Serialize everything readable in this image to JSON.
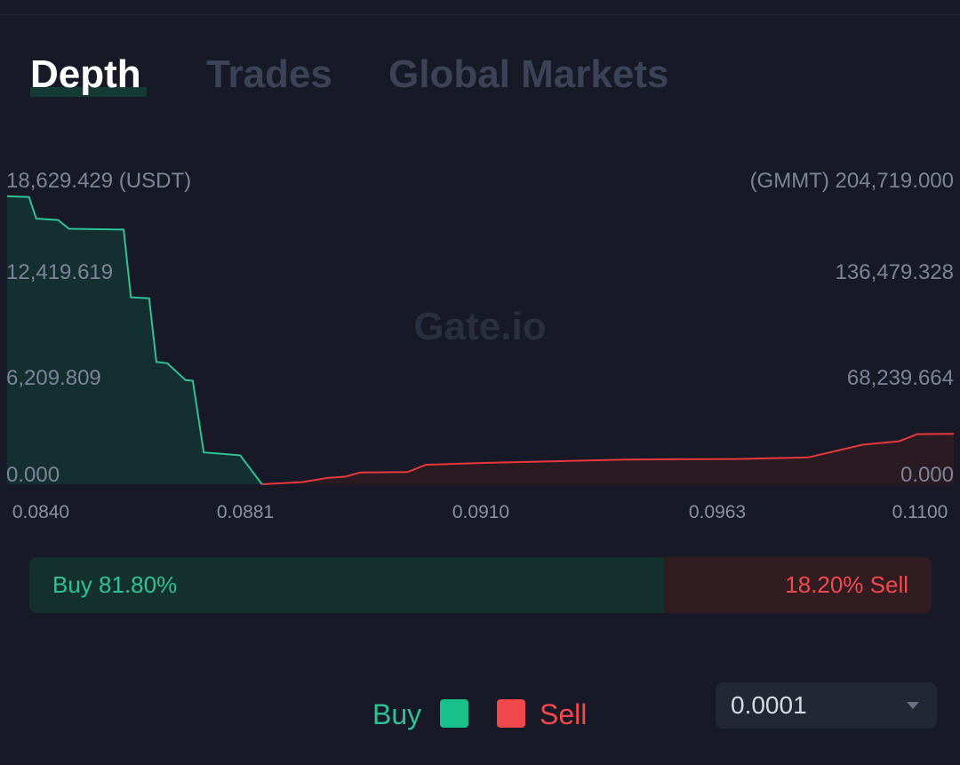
{
  "tabs": [
    {
      "label": "Depth",
      "active": true
    },
    {
      "label": "Trades",
      "active": false
    },
    {
      "label": "Global Markets",
      "active": false
    }
  ],
  "watermark": "Gate.io",
  "colors": {
    "buy": "#2ec294",
    "sell": "#f2494c",
    "background": "#171a26"
  },
  "chart_data": {
    "type": "area",
    "title": "",
    "left_axis": {
      "unit_label": "(USDT)",
      "ticks": [
        "18,629.429",
        "12,419.619",
        "6,209.809",
        "0.000"
      ],
      "range": [
        0,
        18629.429
      ]
    },
    "right_axis": {
      "unit_label": "(GMMT)",
      "ticks": [
        "204,719.000",
        "136,479.328",
        "68,239.664",
        "0.000"
      ],
      "range": [
        0,
        204719.0
      ]
    },
    "x_ticks": [
      "0.0840",
      "0.0881",
      "0.0910",
      "0.0963",
      "0.1100"
    ],
    "series": [
      {
        "name": "Buy",
        "axis": "left",
        "points": [
          [
            0.084,
            18580
          ],
          [
            0.0846,
            18530
          ],
          [
            0.0848,
            17140
          ],
          [
            0.0854,
            17050
          ],
          [
            0.0857,
            16480
          ],
          [
            0.0872,
            16430
          ],
          [
            0.0874,
            12060
          ],
          [
            0.0879,
            12000
          ],
          [
            0.0881,
            7890
          ],
          [
            0.0884,
            7810
          ],
          [
            0.0889,
            6720
          ],
          [
            0.0891,
            6680
          ],
          [
            0.0894,
            2050
          ],
          [
            0.0897,
            2000
          ],
          [
            0.0904,
            1870
          ],
          [
            0.091,
            0
          ]
        ]
      },
      {
        "name": "Sell",
        "axis": "right",
        "points": [
          [
            0.091,
            0
          ],
          [
            0.0921,
            1500
          ],
          [
            0.0928,
            4500
          ],
          [
            0.0933,
            5400
          ],
          [
            0.0937,
            8300
          ],
          [
            0.095,
            8600
          ],
          [
            0.0955,
            13800
          ],
          [
            0.0972,
            15200
          ],
          [
            0.101,
            17500
          ],
          [
            0.104,
            17900
          ],
          [
            0.106,
            19000
          ],
          [
            0.1075,
            28000
          ],
          [
            0.1085,
            30500
          ],
          [
            0.109,
            35500
          ],
          [
            0.11,
            35800
          ]
        ]
      }
    ]
  },
  "depth_ratio": {
    "buy_percent": 81.8,
    "sell_percent": 18.2,
    "buy_label": "Buy 81.80%",
    "sell_label": "18.20% Sell"
  },
  "legend": {
    "buy_label": "Buy",
    "sell_label": "Sell"
  },
  "precision": {
    "value": "0.0001"
  }
}
